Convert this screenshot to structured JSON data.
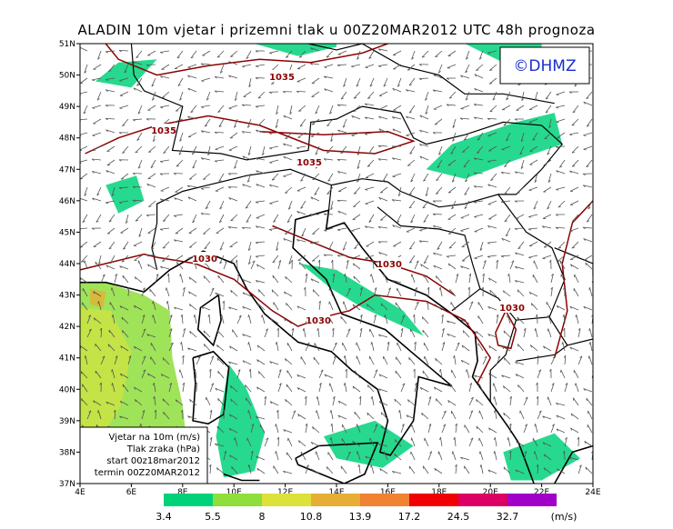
{
  "header": {
    "title": "ALADIN 10m vjetar i prizemni tlak u 00Z20MAR2012 UTC 48h prognoza"
  },
  "logo": "©DHMZ",
  "axes": {
    "lat_labels": [
      "37N",
      "38N",
      "39N",
      "40N",
      "41N",
      "42N",
      "43N",
      "44N",
      "45N",
      "46N",
      "47N",
      "48N",
      "49N",
      "50N",
      "51N"
    ],
    "lon_labels": [
      "4E",
      "6E",
      "8E",
      "10E",
      "12E",
      "14E",
      "16E",
      "18E",
      "20E",
      "22E",
      "24E"
    ]
  },
  "isobars": [
    "1035",
    "1035",
    "1035",
    "1030",
    "1030",
    "1030",
    "1030"
  ],
  "info_box": [
    "Vjetar na 10m (m/s)",
    "Tlak zraka (hPa)",
    "start 00z18mar2012",
    "termin 00Z20MAR2012"
  ],
  "colorbar": {
    "labels": [
      "3.4",
      "5.5",
      "8",
      "10.8",
      "13.9",
      "17.2",
      "24.5",
      "32.7"
    ],
    "unit": "(m/s)",
    "colors": [
      "#00d27a",
      "#8ede3c",
      "#dce23a",
      "#e6ae34",
      "#f08232",
      "#f00000",
      "#dc0064",
      "#a000c8"
    ]
  }
}
